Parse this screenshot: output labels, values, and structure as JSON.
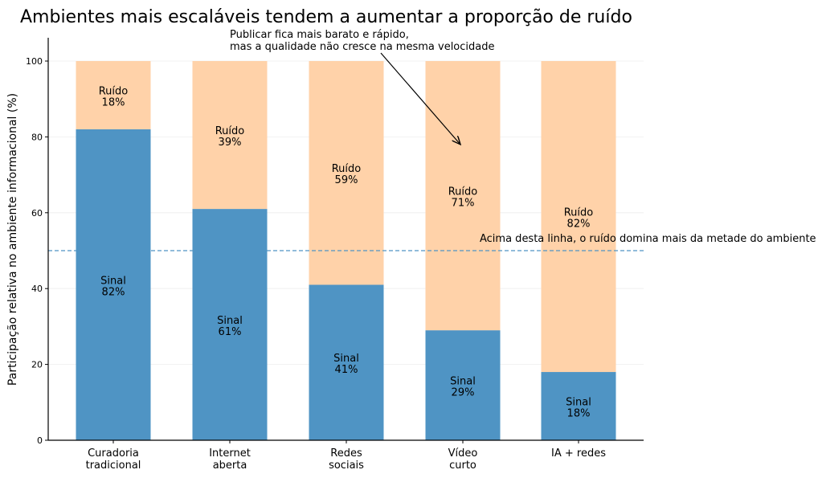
{
  "chart_data": {
    "type": "bar",
    "stacked": true,
    "title": "Ambientes mais escaláveis tendem a aumentar a proporção de ruído",
    "xlabel": "",
    "ylabel": "Participação relativa no ambiente informacional (%)",
    "ylim": [
      0,
      106
    ],
    "yticks": [
      "0",
      "20",
      "40",
      "60",
      "80",
      "100"
    ],
    "grid": "horizontal, faint",
    "categories": [
      [
        "Curadoria",
        "tradicional"
      ],
      [
        "Internet",
        "aberta"
      ],
      [
        "Redes",
        "sociais"
      ],
      [
        "Vídeo",
        "curto"
      ],
      [
        "IA + redes"
      ]
    ],
    "series": [
      {
        "name": "Sinal",
        "color": "#4f94c4",
        "values": [
          82,
          61,
          41,
          29,
          18
        ],
        "labels": [
          "82%",
          "61%",
          "41%",
          "29%",
          "18%"
        ]
      },
      {
        "name": "Ruído",
        "color": "#ffd2a9",
        "values": [
          18,
          39,
          59,
          71,
          82
        ],
        "labels": [
          "18%",
          "39%",
          "59%",
          "71%",
          "82%"
        ]
      }
    ],
    "reference_line": {
      "y": 50,
      "color": "#4f94c4",
      "style": "dashed",
      "label": "Acima desta linha, o ruído domina mais da metade do ambiente"
    },
    "annotation": {
      "lines": [
        "Publicar fica mais barato e rápido,",
        "mas a qualidade não cresce na mesma velocidade"
      ],
      "arrow_target_category": 3,
      "arrow_target_y": 78
    }
  }
}
